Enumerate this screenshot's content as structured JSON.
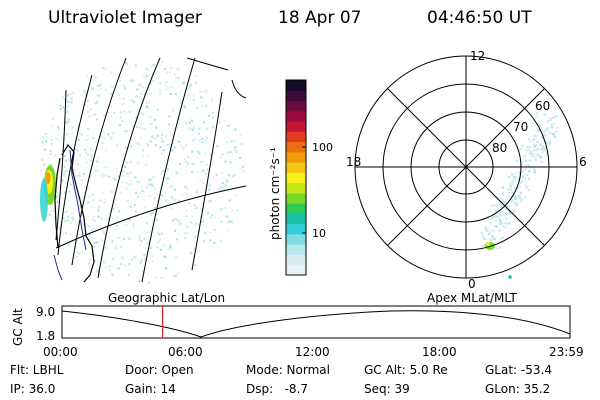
{
  "header": {
    "title": "Ultraviolet Imager",
    "date": "18 Apr 07",
    "time": "04:46:50 UT"
  },
  "colorbar": {
    "unit_label": "photon cm⁻²s⁻¹",
    "tick_labels": [
      "100",
      "10"
    ],
    "colors": [
      "#e9f3f5",
      "#d6edf0",
      "#b8e6ea",
      "#7fdde3",
      "#32cfd6",
      "#1cc0a6",
      "#2ccc55",
      "#78d829",
      "#c6e51a",
      "#f7f018",
      "#f5c812",
      "#f39c0e",
      "#ee6d10",
      "#e23c1e",
      "#c21432",
      "#9a0b3f",
      "#6e0b41",
      "#3b0b3a",
      "#130b28"
    ]
  },
  "geo_map": {
    "label": "Geographic Lat/Lon"
  },
  "polar_plot": {
    "label": "Apex MLat/MLT",
    "mlt_labels": [
      "12",
      "18",
      "6",
      "0"
    ],
    "lat_labels": [
      "60",
      "70",
      "80"
    ]
  },
  "timeline": {
    "y_title": "GC Alt",
    "y_ticks": [
      "9.0",
      "1.8"
    ],
    "x_ticks": [
      "00:00",
      "06:00",
      "12:00",
      "18:00",
      "23:59"
    ],
    "current_time_frac": 0.198,
    "line_color": "#e02020"
  },
  "footer": {
    "col1": [
      "Flt: LBHL",
      "IP: 36.0"
    ],
    "col2": [
      "Door: Open",
      "Gain: 14"
    ],
    "col3": [
      "Mode: Normal",
      "Dsp:   -8.7"
    ],
    "col4": [
      "GC Alt: 5.0 Re",
      "Seq: 39"
    ],
    "col5": [
      "GLat: -53.4",
      "GLon: 35.2"
    ]
  }
}
